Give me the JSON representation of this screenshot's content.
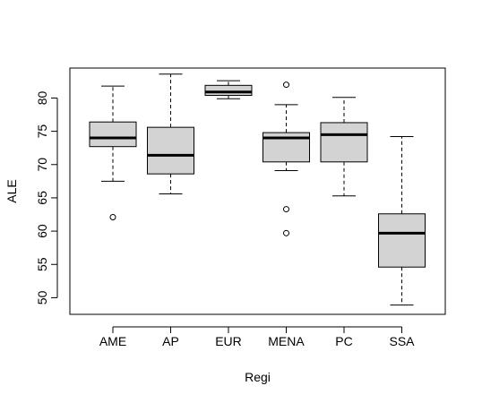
{
  "chart_data": {
    "type": "boxplot",
    "xlabel": "Regi",
    "ylabel": "ALE",
    "ylim": [
      47.5,
      84.5
    ],
    "yticks": [
      50,
      55,
      60,
      65,
      70,
      75,
      80
    ],
    "categories": [
      "AME",
      "AP",
      "EUR",
      "MENA",
      "PC",
      "SSA"
    ],
    "boxes": [
      {
        "name": "AME",
        "whisker_low": 67.5,
        "q1": 72.7,
        "median": 74.0,
        "q3": 76.4,
        "whisker_high": 81.8,
        "outliers": [
          62.1
        ]
      },
      {
        "name": "AP",
        "whisker_low": 65.6,
        "q1": 68.6,
        "median": 71.4,
        "q3": 75.6,
        "whisker_high": 83.6,
        "outliers": []
      },
      {
        "name": "EUR",
        "whisker_low": 79.9,
        "q1": 80.4,
        "median": 80.9,
        "q3": 81.9,
        "whisker_high": 82.6,
        "outliers": []
      },
      {
        "name": "MENA",
        "whisker_low": 69.1,
        "q1": 70.4,
        "median": 74.0,
        "q3": 74.8,
        "whisker_high": 79.0,
        "outliers": [
          82.0,
          63.3,
          59.7
        ]
      },
      {
        "name": "PC",
        "whisker_low": 65.3,
        "q1": 70.4,
        "median": 74.5,
        "q3": 76.3,
        "whisker_high": 80.1,
        "outliers": []
      },
      {
        "name": "SSA",
        "whisker_low": 48.9,
        "q1": 54.6,
        "median": 59.7,
        "q3": 62.6,
        "whisker_high": 74.2,
        "outliers": []
      }
    ],
    "colors": {
      "box_fill": "#d3d3d3",
      "stroke": "#000000"
    }
  }
}
